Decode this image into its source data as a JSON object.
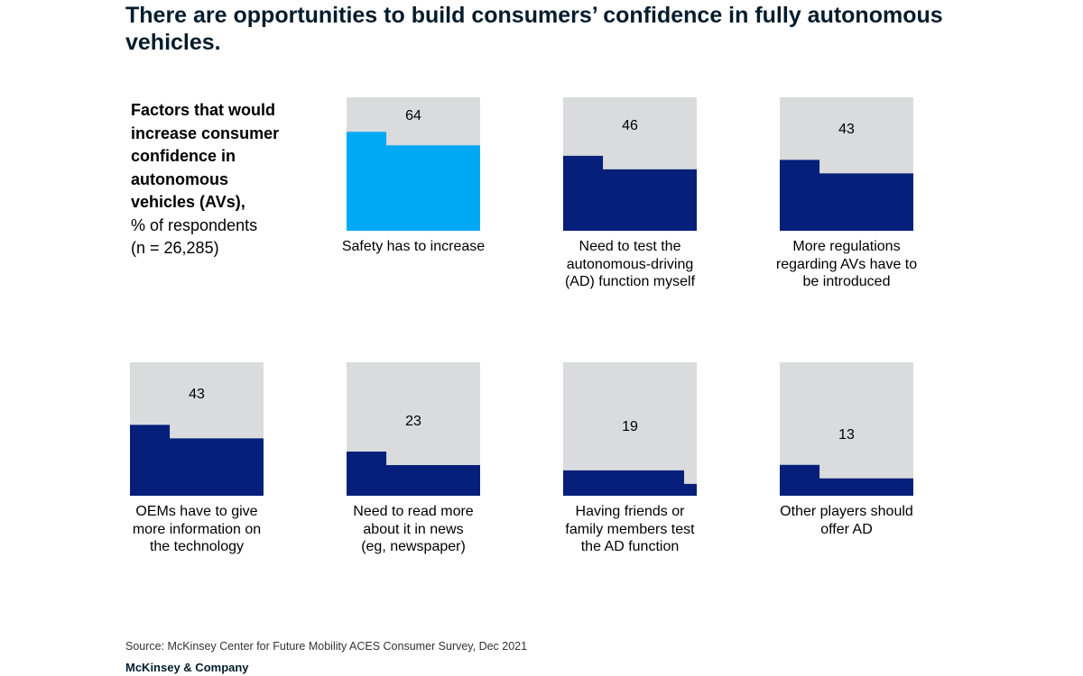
{
  "header": {
    "title": "There are opportunities to build consumers’ confidence in fully autonomous vehicles."
  },
  "subtitle": {
    "bold_lines": [
      "Factors that would",
      "increase consumer",
      "confidence in",
      "autonomous",
      "vehicles (AVs),"
    ],
    "lines": [
      "% of respondents",
      "(n = 26,285)"
    ]
  },
  "chart_data": {
    "type": "bar",
    "unit": "% of respondents",
    "max": 100,
    "categories": [
      "Safety has to increase",
      "Need to test the autonomous-driving (AD) function myself",
      "More regulations regarding AVs have to be introduced",
      "OEMs have to give more information on the technology",
      "Need to read more about it in news (eg, newspaper)",
      "Having friends or family members test the AD function",
      "Other players should offer AD"
    ],
    "values": [
      64,
      46,
      43,
      43,
      23,
      19,
      13
    ],
    "label_lines": [
      [
        "Safety has to increase"
      ],
      [
        "Need to test the",
        "autonomous-driving",
        "(AD) function myself"
      ],
      [
        "More regulations",
        "regarding AVs have to",
        "be introduced"
      ],
      [
        "OEMs have to give",
        "more information on",
        "the technology"
      ],
      [
        "Need to read more",
        "about it in news",
        "(eg, newspaper)"
      ],
      [
        "Having friends or",
        "family members test",
        "the AD function"
      ],
      [
        "Other players should",
        "offer AD"
      ]
    ],
    "colors": {
      "highlight": "#00a9f4",
      "fill": "#051f7a",
      "background": "#d9dbdd"
    }
  },
  "footer": {
    "source": "Source: McKinsey Center for Future Mobility ACES Consumer Survey, Dec 2021",
    "brand": "McKinsey & Company"
  }
}
